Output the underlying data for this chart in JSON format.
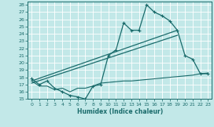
{
  "bg_color": "#c2e8e8",
  "line_color": "#1a6b6b",
  "xlabel": "Humidex (Indice chaleur)",
  "xlim": [
    -0.5,
    23.5
  ],
  "ylim": [
    15,
    28.5
  ],
  "yticks": [
    15,
    16,
    17,
    18,
    19,
    20,
    21,
    22,
    23,
    24,
    25,
    26,
    27,
    28
  ],
  "xticks": [
    0,
    1,
    2,
    3,
    4,
    5,
    6,
    7,
    8,
    9,
    10,
    11,
    12,
    13,
    14,
    15,
    16,
    17,
    18,
    19,
    20,
    21,
    22,
    23
  ],
  "humidex_x": [
    0,
    1,
    2,
    3,
    4,
    5,
    6,
    7,
    8,
    9,
    10,
    11,
    12,
    13,
    14,
    15,
    16,
    17,
    18,
    19,
    20,
    21,
    22,
    23
  ],
  "humidex_y": [
    17.8,
    17.0,
    17.5,
    16.5,
    16.0,
    15.5,
    15.3,
    15.0,
    16.8,
    17.0,
    21.0,
    21.8,
    25.5,
    24.5,
    24.5,
    28.0,
    27.0,
    26.5,
    25.8,
    24.5,
    21.0,
    20.5,
    18.5,
    18.5
  ],
  "trend1_x": [
    0,
    19
  ],
  "trend1_y": [
    17.5,
    24.5
  ],
  "trend2_x": [
    0,
    19
  ],
  "trend2_y": [
    17.2,
    23.8
  ],
  "dew_x": [
    0,
    1,
    2,
    3,
    4,
    5,
    6,
    7,
    8,
    9,
    10,
    11,
    12,
    13,
    14,
    15,
    16,
    17,
    18,
    19,
    20,
    21,
    22,
    23
  ],
  "dew_y": [
    17.5,
    16.8,
    16.8,
    16.3,
    16.5,
    16.0,
    16.5,
    16.5,
    16.8,
    17.2,
    17.3,
    17.4,
    17.5,
    17.5,
    17.6,
    17.7,
    17.8,
    17.9,
    18.0,
    18.1,
    18.2,
    18.3,
    18.5,
    18.6
  ]
}
